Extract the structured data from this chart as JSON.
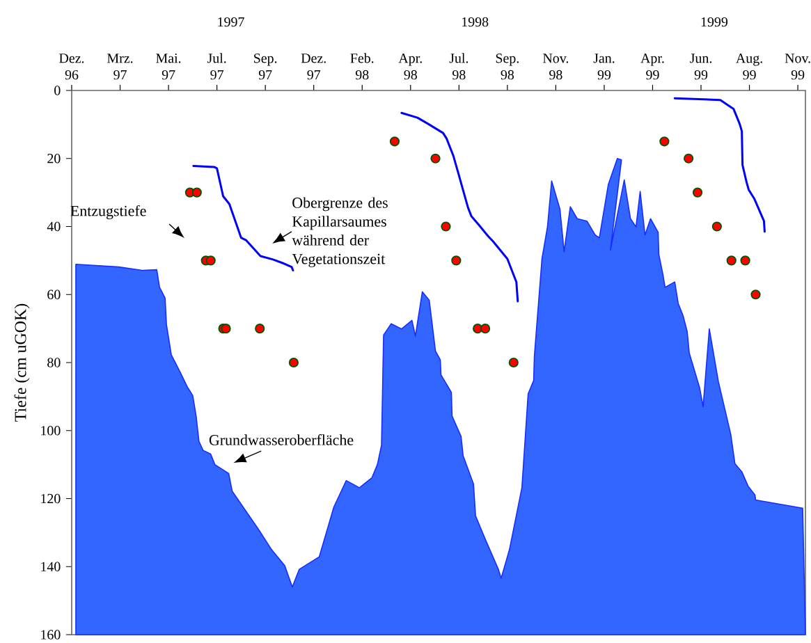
{
  "chart_data": {
    "type": "area",
    "ylabel": "Tiefe (cm uGOK)",
    "xlim": [
      "1996-12-21",
      "1999-11-17"
    ],
    "ylim": [
      160,
      0
    ],
    "xticks": [
      {
        "value": "1996-12-21",
        "label": "Dez. 96"
      },
      {
        "value": "1997-03-01",
        "label": "Mrz. 97"
      },
      {
        "value": "1997-05-10",
        "label": "Mai. 97"
      },
      {
        "value": "1997-07-19",
        "label": "Jul. 97"
      },
      {
        "value": "1997-09-27",
        "label": "Sep. 97"
      },
      {
        "value": "1997-12-06",
        "label": "Dez. 97"
      },
      {
        "value": "1998-02-14",
        "label": "Feb. 98"
      },
      {
        "value": "1998-04-25",
        "label": "Apr. 98"
      },
      {
        "value": "1998-07-04",
        "label": "Jul. 98"
      },
      {
        "value": "1998-09-12",
        "label": "Sep. 98"
      },
      {
        "value": "1998-11-21",
        "label": "Nov. 98"
      },
      {
        "value": "1999-01-30",
        "label": "Jan. 99"
      },
      {
        "value": "1999-04-10",
        "label": "Apr. 99"
      },
      {
        "value": "1999-06-19",
        "label": "Jun. 99"
      },
      {
        "value": "1999-08-28",
        "label": "Aug. 99"
      },
      {
        "value": "1999-11-06",
        "label": "Nov. 99"
      }
    ],
    "yticks": [
      0,
      20,
      40,
      60,
      80,
      100,
      120,
      140,
      160
    ],
    "x2lim": [
      "1996-12-21",
      "1999-11-17"
    ],
    "x2ticks": [
      {
        "value": "1997-08-08",
        "label": "1997"
      },
      {
        "value": "1998-07-27",
        "label": "1998"
      },
      {
        "value": "1999-07-08",
        "label": "1999"
      }
    ],
    "series": [
      {
        "name": "Grundwasseroberfläche",
        "type": "area",
        "color": "#3366ff",
        "x": [
          "1996-12-27",
          "1996-12-27",
          "1997-02-27",
          "1997-04-02",
          "1997-04-23",
          "1997-04-27",
          "1997-05-05",
          "1997-05-07",
          "1997-05-14",
          "1997-05-27",
          "1997-06-06",
          "1997-06-14",
          "1997-06-19",
          "1997-06-23",
          "1997-06-29",
          "1997-07-10",
          "1997-07-16",
          "1997-08-05",
          "1997-08-10",
          "1997-09-18",
          "1997-10-06",
          "1997-10-25",
          "1997-11-05",
          "1997-11-15",
          "1997-12-14",
          "1998-01-04",
          "1998-01-22",
          "1998-02-10",
          "1998-02-28",
          "1998-03-08",
          "1998-03-14",
          "1998-03-17",
          "1998-03-28",
          "1998-04-12",
          "1998-04-27",
          "1998-05-02",
          "1998-05-12",
          "1998-05-22",
          "1998-05-31",
          "1998-06-07",
          "1998-06-08",
          "1998-06-23",
          "1998-06-24",
          "1998-07-07",
          "1998-07-10",
          "1998-07-25",
          "1998-07-28",
          "1998-08-12",
          "1998-08-30",
          "1998-09-03",
          "1998-09-15",
          "1998-10-03",
          "1998-10-12",
          "1998-10-20",
          "1998-10-21",
          "1998-11-01",
          "1998-11-09",
          "1998-11-15",
          "1998-11-27",
          "1998-12-03",
          "1998-12-12",
          "1998-12-22",
          "1999-01-05",
          "1999-01-17",
          "1999-01-23",
          "1999-02-05",
          "1999-02-18",
          "1999-02-24",
          "1999-02-08",
          "1999-02-28",
          "1999-03-09",
          "1999-03-17",
          "1999-03-23",
          "1999-03-30",
          "1999-04-07",
          "1999-04-18",
          "1999-04-19",
          "1999-04-25",
          "1999-04-28",
          "1999-05-12",
          "1999-05-17",
          "1999-05-24",
          "1999-05-30",
          "1999-06-02",
          "1999-06-17",
          "1999-06-22",
          "1999-07-01",
          "1999-07-14",
          "1999-08-01",
          "1999-08-07",
          "1999-08-17",
          "1999-08-26",
          "1999-09-05",
          "1999-09-06",
          "1999-11-13",
          "1999-11-17"
        ],
        "values": [
          160,
          51.1,
          51.9,
          52.9,
          52.7,
          57.9,
          61.0,
          68.8,
          77.7,
          82.9,
          87.1,
          89.7,
          95.9,
          103.2,
          105.8,
          106.9,
          110.0,
          112.6,
          117.8,
          129.3,
          135.0,
          139.7,
          146.0,
          140.8,
          137.1,
          122.5,
          114.7,
          116.8,
          113.9,
          110.0,
          104.3,
          71.9,
          68.6,
          70.1,
          67.6,
          72.2,
          59.2,
          61.7,
          76.6,
          79.2,
          83.6,
          88.8,
          95.7,
          101.7,
          107.4,
          115.7,
          125.1,
          132.4,
          140.8,
          143.4,
          135.0,
          116.8,
          89.2,
          85.3,
          78.2,
          49.5,
          40.1,
          26.6,
          34.9,
          47.4,
          34.2,
          37.7,
          38.4,
          42.5,
          43.3,
          27.6,
          20.0,
          20.4,
          46.9,
          26.3,
          37.7,
          40.1,
          29.7,
          42.5,
          37.7,
          41.7,
          48.2,
          54.2,
          57.9,
          56.3,
          62.6,
          66.2,
          70.9,
          77.2,
          87.4,
          93.0,
          70.1,
          85.5,
          101.1,
          109.7,
          112.1,
          116.3,
          118.9,
          120.4,
          122.8,
          160
        ]
      },
      {
        "name": "Obergrenze des Kapillarsaumes während der Vegetationszeit",
        "type": "line",
        "color": "#0000ff",
        "x": [
          "1997-06-15",
          "1997-07-15",
          "1997-07-19",
          "1997-07-28",
          "1997-08-06",
          "1997-08-23",
          "1997-08-30",
          "1997-09-20",
          "1997-10-08",
          "1997-10-24",
          "1997-11-04",
          "1997-11-06",
          "1998-01-01",
          "1998-04-12",
          "1998-05-05",
          "1998-05-21",
          "1998-06-11",
          "1998-06-16",
          "1998-06-26",
          "1998-07-04",
          "1998-07-17",
          "1998-07-22",
          "1998-08-02",
          "1998-08-15",
          "1998-08-22",
          "1998-09-12",
          "1998-09-25",
          "1998-09-27",
          "1999-01-01",
          "1999-05-12",
          "1999-07-17",
          "1999-07-27",
          "1999-08-05",
          "1999-08-14",
          "1999-08-17",
          "1999-08-18",
          "1999-08-24",
          "1999-08-27",
          "1999-09-04",
          "1999-09-18",
          "1999-09-19"
        ],
        "values": [
          22.2,
          22.5,
          22.9,
          31.1,
          33.4,
          43.3,
          44.0,
          48.7,
          49.7,
          50.9,
          51.9,
          52.9,
          null,
          6.6,
          8.0,
          9.9,
          12.5,
          14.1,
          19.3,
          25.0,
          34.4,
          37.0,
          39.6,
          42.8,
          44.3,
          49.5,
          56.3,
          62.0,
          null,
          2.3,
          2.8,
          4.2,
          5.4,
          9.9,
          12.0,
          21.9,
          27.1,
          29.2,
          31.8,
          38.4,
          41.5
        ]
      },
      {
        "name": "Entzugstiefe",
        "type": "scatter",
        "marker": "circle",
        "color": "#ff0000",
        "x": [
          "1997-06-10",
          "1997-06-20",
          "1997-07-03",
          "1997-07-10",
          "1997-07-28",
          "1997-08-01",
          "1997-09-19",
          "1997-11-07",
          "1998-04-02",
          "1998-05-31",
          "1998-06-15",
          "1998-06-30",
          "1998-07-31",
          "1998-08-11",
          "1998-09-21",
          "1999-04-27",
          "1999-06-01",
          "1999-06-14",
          "1999-07-12",
          "1999-08-02",
          "1999-08-22",
          "1999-09-06"
        ],
        "values": [
          30,
          30,
          50,
          50,
          70,
          70,
          70,
          80,
          15,
          20,
          40,
          50,
          70,
          70,
          80,
          15,
          20,
          30,
          40,
          50,
          50,
          60
        ]
      }
    ]
  }
}
